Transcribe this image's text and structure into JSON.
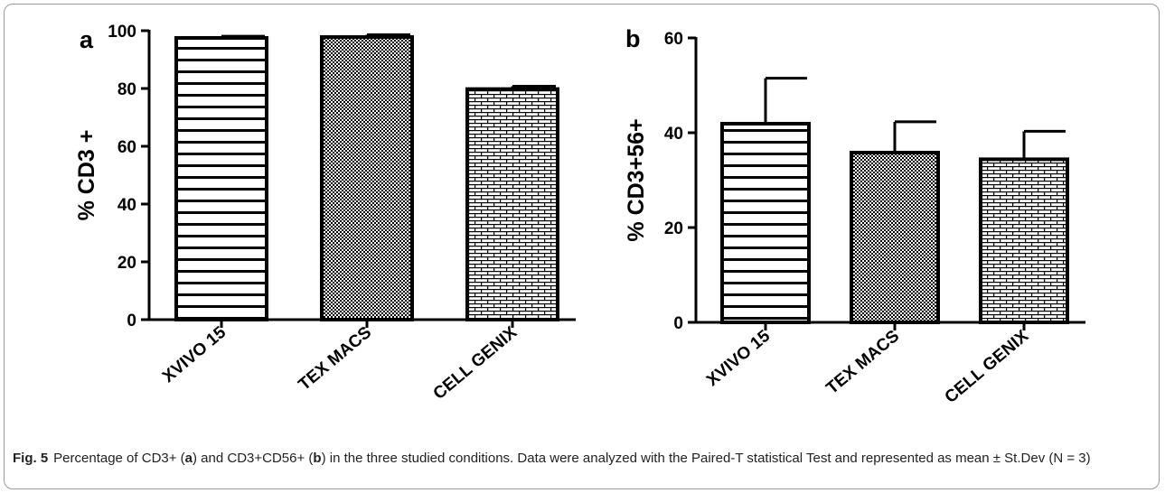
{
  "chart_data": [
    {
      "type": "bar",
      "panel_label": "a",
      "ylabel": "% CD3 +",
      "categories": [
        "XVIVO 15",
        "TEX MACS",
        "CELL GENIX"
      ],
      "values": [
        97.5,
        97.8,
        79.8
      ],
      "errors": [
        0.6,
        0.8,
        1.0
      ],
      "ylim": [
        0,
        100
      ],
      "yticks": [
        0,
        20,
        40,
        60,
        80,
        100
      ],
      "patterns": [
        "horizontal-lines",
        "checker",
        "brick"
      ],
      "grid": false
    },
    {
      "type": "bar",
      "panel_label": "b",
      "ylabel": "% CD3+56+",
      "categories": [
        "XVIVO 15",
        "TEX MACS",
        "CELL GENIX"
      ],
      "values": [
        41.9,
        35.8,
        34.4
      ],
      "errors": [
        9.6,
        6.5,
        5.9
      ],
      "ylim": [
        0,
        60
      ],
      "yticks": [
        0,
        20,
        40,
        60
      ],
      "patterns": [
        "horizontal-lines",
        "checker",
        "brick"
      ],
      "grid": false
    }
  ],
  "caption": {
    "label": "Fig. 5",
    "parts": [
      {
        "text": "Percentage of CD3+ (",
        "bold": false
      },
      {
        "text": "a",
        "bold": true
      },
      {
        "text": ") and CD3+CD56+ (",
        "bold": false
      },
      {
        "text": "b",
        "bold": true
      },
      {
        "text": ") in the three studied conditions. Data were analyzed with the Paired-T statistical Test and represented as mean ± St.Dev (N = 3)",
        "bold": false
      }
    ]
  }
}
